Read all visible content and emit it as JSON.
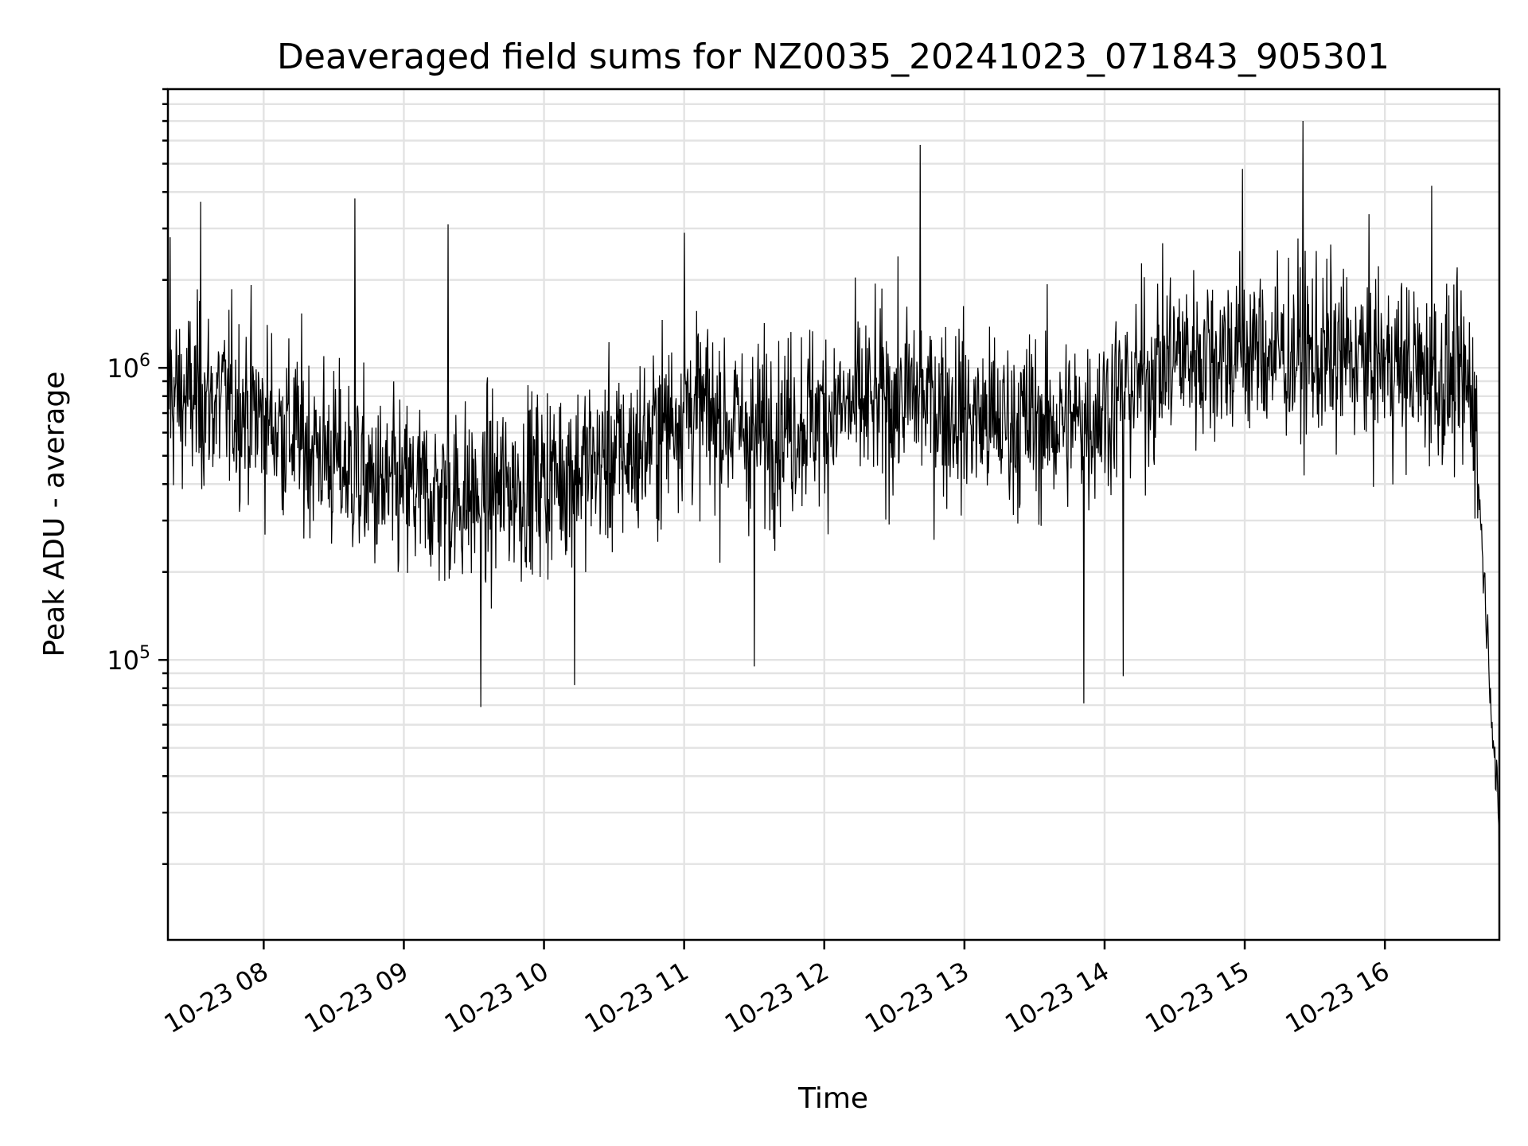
{
  "chart_data": {
    "type": "line",
    "title": "Deaveraged field sums for NZ0035_20241023_071843_905301",
    "xlabel": "Time",
    "ylabel": "Peak ADU - average",
    "x_type": "datetime",
    "x_range": [
      "2024-10-23 07:19",
      "2024-10-23 16:49"
    ],
    "y_scale": "log",
    "ylim": [
      11000,
      9000000
    ],
    "grid": "major and minor",
    "x_ticks": [
      {
        "value": "2024-10-23 08:00",
        "label": "10-23 08"
      },
      {
        "value": "2024-10-23 09:00",
        "label": "10-23 09"
      },
      {
        "value": "2024-10-23 10:00",
        "label": "10-23 10"
      },
      {
        "value": "2024-10-23 11:00",
        "label": "10-23 11"
      },
      {
        "value": "2024-10-23 12:00",
        "label": "10-23 12"
      },
      {
        "value": "2024-10-23 13:00",
        "label": "10-23 13"
      },
      {
        "value": "2024-10-23 14:00",
        "label": "10-23 14"
      },
      {
        "value": "2024-10-23 15:00",
        "label": "10-23 15"
      },
      {
        "value": "2024-10-23 16:00",
        "label": "10-23 16"
      }
    ],
    "y_ticks": [
      {
        "value": 100000,
        "base": "10",
        "exp": "5"
      },
      {
        "value": 1000000,
        "base": "10",
        "exp": "6"
      }
    ],
    "series": [
      {
        "color": "#000000",
        "typical_level": [
          [
            "2024-10-23 07:19",
            800000
          ],
          [
            "2024-10-23 07:50",
            750000
          ],
          [
            "2024-10-23 08:20",
            550000
          ],
          [
            "2024-10-23 08:50",
            380000
          ],
          [
            "2024-10-23 09:30",
            360000
          ],
          [
            "2024-10-23 10:00",
            420000
          ],
          [
            "2024-10-23 10:40",
            520000
          ],
          [
            "2024-10-23 11:00",
            750000
          ],
          [
            "2024-10-23 11:30",
            600000
          ],
          [
            "2024-10-23 12:00",
            700000
          ],
          [
            "2024-10-23 12:40",
            800000
          ],
          [
            "2024-10-23 13:10",
            650000
          ],
          [
            "2024-10-23 13:50",
            650000
          ],
          [
            "2024-10-23 14:30",
            1100000
          ],
          [
            "2024-10-23 15:00",
            1150000
          ],
          [
            "2024-10-23 15:30",
            1100000
          ],
          [
            "2024-10-23 16:00",
            1050000
          ],
          [
            "2024-10-23 16:38",
            850000
          ],
          [
            "2024-10-23 16:41",
            300000
          ],
          [
            "2024-10-23 16:44",
            120000
          ],
          [
            "2024-10-23 16:47",
            45000
          ],
          [
            "2024-10-23 16:49",
            25000
          ]
        ],
        "spikes": [
          [
            "2024-10-23 07:20",
            2800000
          ],
          [
            "2024-10-23 07:33",
            3700000
          ],
          [
            "2024-10-23 08:39",
            3800000
          ],
          [
            "2024-10-23 09:19",
            3100000
          ],
          [
            "2024-10-23 09:33",
            69000
          ],
          [
            "2024-10-23 10:13",
            82000
          ],
          [
            "2024-10-23 11:00",
            2900000
          ],
          [
            "2024-10-23 11:30",
            95000
          ],
          [
            "2024-10-23 12:41",
            5800000
          ],
          [
            "2024-10-23 13:51",
            71000
          ],
          [
            "2024-10-23 14:08",
            88000
          ],
          [
            "2024-10-23 14:59",
            4800000
          ],
          [
            "2024-10-23 15:25",
            7000000
          ],
          [
            "2024-10-23 16:20",
            4200000
          ],
          [
            "2024-10-23 16:49",
            14000
          ]
        ]
      }
    ]
  }
}
